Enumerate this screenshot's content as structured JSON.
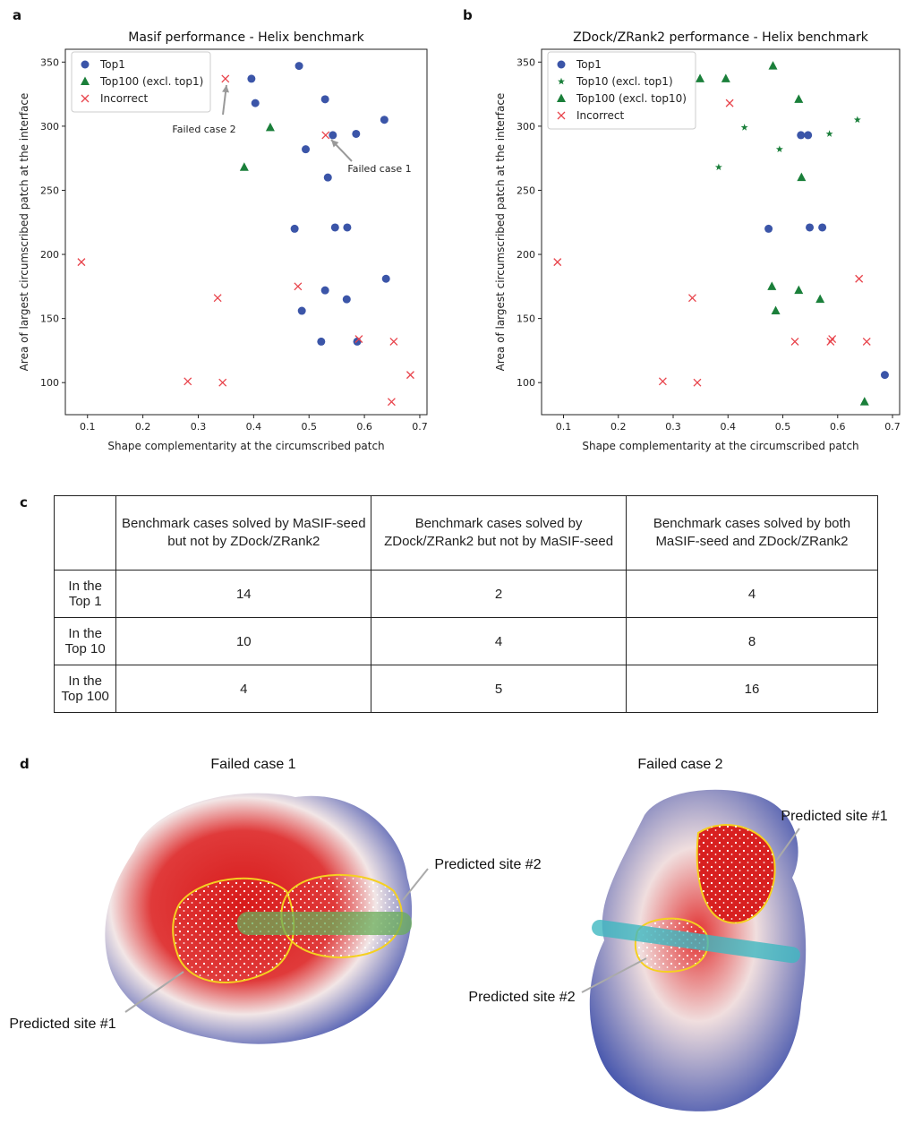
{
  "panels": [
    "a",
    "b",
    "c",
    "d"
  ],
  "chart_data": [
    {
      "type": "scatter",
      "title": "Masif performance - Helix benchmark",
      "xlabel": "Shape complementarity at the circumscribed patch",
      "ylabel": "Area of largest circumscribed patch at the interface",
      "xlim": [
        0.06,
        0.713
      ],
      "ylim": [
        75,
        360
      ],
      "xticks": [
        0.1,
        0.2,
        0.3,
        0.4,
        0.5,
        0.6,
        0.7
      ],
      "yticks": [
        100,
        150,
        200,
        250,
        300,
        350
      ],
      "legend": "upper left",
      "series": [
        {
          "name": "Top1",
          "color": "#3b55a8",
          "marker": "circle",
          "x": [
            0.396,
            0.482,
            0.403,
            0.529,
            0.636,
            0.543,
            0.585,
            0.494,
            0.534,
            0.474,
            0.547,
            0.569,
            0.639,
            0.529,
            0.568,
            0.487,
            0.522,
            0.587
          ],
          "values": [
            337,
            347,
            318,
            321,
            305,
            293,
            294,
            282,
            260,
            220,
            221,
            221,
            181,
            172,
            165,
            156,
            132,
            132
          ]
        },
        {
          "name": "Top100 (excl. top1)",
          "color": "#1a7f3a",
          "marker": "triangle",
          "x": [
            0.43,
            0.383
          ],
          "values": [
            299,
            268
          ]
        },
        {
          "name": "Incorrect",
          "color": "#e8434b",
          "marker": "x",
          "x": [
            0.349,
            0.53,
            0.089,
            0.335,
            0.48,
            0.59,
            0.653,
            0.683,
            0.649,
            0.281,
            0.344
          ],
          "values": [
            337,
            293,
            194,
            166,
            175,
            134,
            132,
            106,
            85,
            101,
            100
          ]
        }
      ],
      "annotations": [
        "Failed case 2",
        "Failed case 1"
      ]
    },
    {
      "type": "scatter",
      "title": "ZDock/ZRank2 performance - Helix benchmark",
      "xlabel": "Shape complementarity at the circumscribed patch",
      "ylabel": "Area of largest circumscribed patch at the interface",
      "xlim": [
        0.06,
        0.713
      ],
      "ylim": [
        75,
        360
      ],
      "xticks": [
        0.1,
        0.2,
        0.3,
        0.4,
        0.5,
        0.6,
        0.7
      ],
      "yticks": [
        100,
        150,
        200,
        250,
        300,
        350
      ],
      "legend": "upper left",
      "series": [
        {
          "name": "Top1",
          "color": "#3b55a8",
          "marker": "circle",
          "x": [
            0.533,
            0.546,
            0.474,
            0.549,
            0.572,
            0.686
          ],
          "values": [
            293,
            293,
            220,
            221,
            221,
            106
          ]
        },
        {
          "name": "Top10 (excl. top1)",
          "color": "#1a7f3a",
          "marker": "star",
          "x": [
            0.43,
            0.383,
            0.494,
            0.585,
            0.636
          ],
          "values": [
            299,
            268,
            282,
            294,
            305
          ]
        },
        {
          "name": "Top100 (excl. top10)",
          "color": "#1a7f3a",
          "marker": "triangle",
          "x": [
            0.349,
            0.396,
            0.482,
            0.529,
            0.534,
            0.48,
            0.529,
            0.568,
            0.487,
            0.649
          ],
          "values": [
            337,
            337,
            347,
            321,
            260,
            175,
            172,
            165,
            156,
            85
          ]
        },
        {
          "name": "Incorrect",
          "color": "#e8434b",
          "marker": "x",
          "x": [
            0.403,
            0.089,
            0.335,
            0.639,
            0.522,
            0.587,
            0.59,
            0.653,
            0.281,
            0.344
          ],
          "values": [
            318,
            194,
            166,
            181,
            132,
            132,
            134,
            132,
            101,
            100
          ]
        }
      ]
    }
  ],
  "table": {
    "header": [
      "Benchmark cases solved by MaSIF-seed but not by ZDock/ZRank2",
      "Benchmark cases solved by ZDock/ZRank2 but not by MaSIF-seed",
      "Benchmark cases solved by both MaSIF-seed and ZDock/ZRank2"
    ],
    "rows": [
      {
        "label": "In the Top 1",
        "values": [
          14,
          2,
          4
        ]
      },
      {
        "label": "In the Top 10",
        "values": [
          10,
          4,
          8
        ]
      },
      {
        "label": "In the Top 100",
        "values": [
          4,
          5,
          16
        ]
      }
    ]
  },
  "panel_d": {
    "cases": [
      {
        "title": "Failed case 1",
        "labels": [
          "Predicted site #2",
          "Predicted site #1"
        ]
      },
      {
        "title": "Failed case 2",
        "labels": [
          "Predicted site #1",
          "Predicted site #2"
        ]
      }
    ]
  }
}
